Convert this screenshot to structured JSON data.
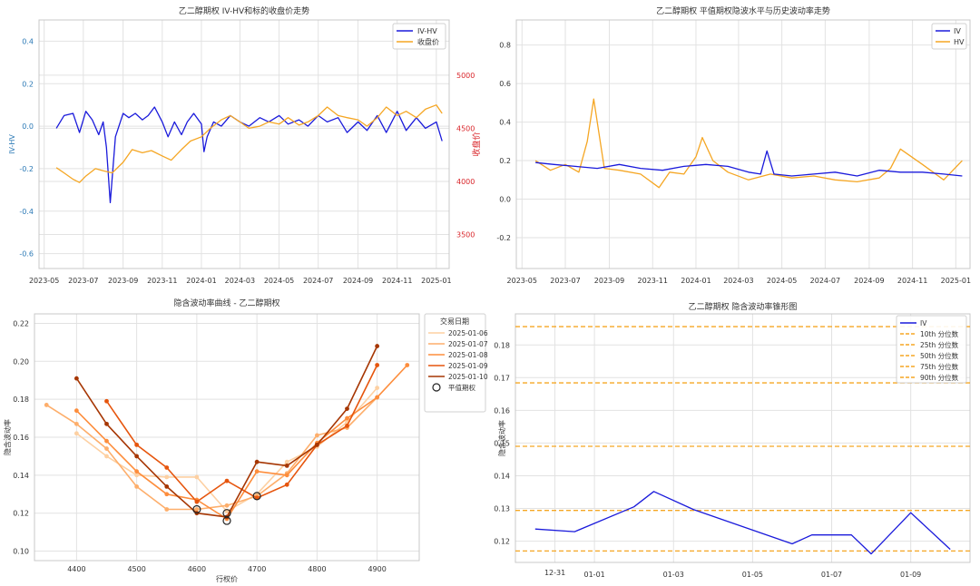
{
  "chart_data": [
    {
      "type": "line",
      "title": "乙二醇期权 IV-HV和标的收盘价走势",
      "ylabel": "IV-HV",
      "y2label": "收盘价",
      "ylim": [
        -0.67,
        0.5
      ],
      "y2lim": [
        3180,
        5520
      ],
      "yticks": [
        -0.6,
        -0.4,
        -0.2,
        0.0,
        0.2,
        0.4
      ],
      "y2ticks": [
        3500,
        4000,
        4500,
        5000
      ],
      "xticks": [
        "2023-05",
        "2023-07",
        "2023-09",
        "2023-11",
        "2024-01",
        "2024-03",
        "2024-05",
        "2024-07",
        "2024-09",
        "2024-11",
        "2025-01"
      ],
      "legend": "top-right",
      "grid": true,
      "series": [
        {
          "name": "IV-HV",
          "axis": "left",
          "color": "#1a1adb",
          "x": [
            "2023-05-20",
            "2023-06-01",
            "2023-06-15",
            "2023-06-25",
            "2023-07-05",
            "2023-07-15",
            "2023-07-25",
            "2023-08-01",
            "2023-08-06",
            "2023-08-12",
            "2023-08-20",
            "2023-09-01",
            "2023-09-10",
            "2023-09-20",
            "2023-10-01",
            "2023-10-10",
            "2023-10-20",
            "2023-11-01",
            "2023-11-10",
            "2023-11-20",
            "2023-12-01",
            "2023-12-10",
            "2023-12-20",
            "2024-01-01",
            "2024-01-05",
            "2024-01-10",
            "2024-01-20",
            "2024-02-01",
            "2024-02-15",
            "2024-03-01",
            "2024-03-15",
            "2024-04-01",
            "2024-04-15",
            "2024-05-01",
            "2024-05-15",
            "2024-06-01",
            "2024-06-15",
            "2024-07-01",
            "2024-07-15",
            "2024-08-01",
            "2024-08-15",
            "2024-09-01",
            "2024-09-15",
            "2024-10-01",
            "2024-10-15",
            "2024-11-01",
            "2024-11-15",
            "2024-12-01",
            "2024-12-15",
            "2025-01-01",
            "2025-01-10"
          ],
          "values": [
            -0.01,
            0.05,
            0.06,
            -0.03,
            0.07,
            0.03,
            -0.04,
            0.02,
            -0.1,
            -0.36,
            -0.05,
            0.06,
            0.04,
            0.06,
            0.03,
            0.05,
            0.09,
            0.02,
            -0.05,
            0.02,
            -0.04,
            0.02,
            0.06,
            0.01,
            -0.12,
            -0.05,
            0.02,
            0.0,
            0.05,
            0.02,
            0.0,
            0.04,
            0.02,
            0.05,
            0.01,
            0.03,
            0.0,
            0.05,
            0.02,
            0.04,
            -0.03,
            0.02,
            -0.02,
            0.05,
            -0.03,
            0.07,
            -0.02,
            0.04,
            -0.01,
            0.02,
            -0.07
          ]
        },
        {
          "name": "收盘价",
          "axis": "right",
          "color": "#f5a623",
          "x": [
            "2023-05-20",
            "2023-06-01",
            "2023-06-15",
            "2023-06-25",
            "2023-07-05",
            "2023-07-20",
            "2023-08-01",
            "2023-08-15",
            "2023-09-01",
            "2023-09-15",
            "2023-10-01",
            "2023-10-15",
            "2023-11-01",
            "2023-11-15",
            "2023-12-01",
            "2023-12-15",
            "2024-01-01",
            "2024-01-15",
            "2024-02-01",
            "2024-02-15",
            "2024-03-01",
            "2024-03-15",
            "2024-04-01",
            "2024-04-15",
            "2024-05-01",
            "2024-05-15",
            "2024-06-01",
            "2024-06-15",
            "2024-07-01",
            "2024-07-15",
            "2024-08-01",
            "2024-08-15",
            "2024-09-01",
            "2024-09-15",
            "2024-10-01",
            "2024-10-15",
            "2024-11-01",
            "2024-11-15",
            "2024-12-01",
            "2024-12-15",
            "2025-01-01",
            "2025-01-10"
          ],
          "values": [
            4130,
            4080,
            4020,
            3990,
            4050,
            4120,
            4100,
            4080,
            4180,
            4300,
            4270,
            4290,
            4240,
            4200,
            4300,
            4380,
            4420,
            4500,
            4580,
            4620,
            4560,
            4500,
            4520,
            4560,
            4540,
            4600,
            4530,
            4560,
            4620,
            4700,
            4620,
            4600,
            4580,
            4520,
            4600,
            4700,
            4620,
            4660,
            4600,
            4680,
            4720,
            4640
          ]
        }
      ]
    },
    {
      "type": "line",
      "title": "乙二醇期权 平值期权隐波水平与历史波动率走势",
      "ylim": [
        -0.36,
        0.93
      ],
      "yticks": [
        -0.2,
        0.0,
        0.2,
        0.4,
        0.6,
        0.8
      ],
      "xticks": [
        "2023-05",
        "2023-07",
        "2023-09",
        "2023-11",
        "2024-01",
        "2024-03",
        "2024-05",
        "2024-07",
        "2024-09",
        "2024-11",
        "2025-01"
      ],
      "legend": "top-right",
      "grid": true,
      "series": [
        {
          "name": "IV",
          "color": "#1a1adb",
          "x": [
            "2023-05-20",
            "2023-06-15",
            "2023-07-15",
            "2023-08-15",
            "2023-09-15",
            "2023-10-15",
            "2023-11-15",
            "2023-12-15",
            "2024-01-15",
            "2024-02-15",
            "2024-03-15",
            "2024-04-01",
            "2024-04-10",
            "2024-04-20",
            "2024-05-15",
            "2024-06-15",
            "2024-07-15",
            "2024-08-15",
            "2024-09-15",
            "2024-10-15",
            "2024-11-15",
            "2024-12-15",
            "2025-01-10"
          ],
          "values": [
            0.19,
            0.18,
            0.17,
            0.16,
            0.18,
            0.16,
            0.15,
            0.17,
            0.18,
            0.17,
            0.14,
            0.13,
            0.25,
            0.13,
            0.12,
            0.13,
            0.14,
            0.12,
            0.15,
            0.14,
            0.14,
            0.13,
            0.12
          ]
        },
        {
          "name": "HV",
          "color": "#f5a623",
          "x": [
            "2023-05-20",
            "2023-06-10",
            "2023-07-01",
            "2023-07-20",
            "2023-08-01",
            "2023-08-10",
            "2023-08-25",
            "2023-09-15",
            "2023-10-15",
            "2023-11-10",
            "2023-11-25",
            "2023-12-15",
            "2024-01-01",
            "2024-01-10",
            "2024-01-25",
            "2024-02-15",
            "2024-03-15",
            "2024-04-15",
            "2024-05-15",
            "2024-06-15",
            "2024-07-15",
            "2024-08-15",
            "2024-09-15",
            "2024-10-01",
            "2024-10-15",
            "2024-11-15",
            "2024-12-15",
            "2025-01-10"
          ],
          "values": [
            0.2,
            0.15,
            0.18,
            0.14,
            0.3,
            0.52,
            0.16,
            0.15,
            0.13,
            0.06,
            0.14,
            0.13,
            0.22,
            0.32,
            0.2,
            0.14,
            0.1,
            0.13,
            0.11,
            0.12,
            0.1,
            0.09,
            0.11,
            0.16,
            0.26,
            0.18,
            0.1,
            0.2
          ]
        }
      ]
    },
    {
      "type": "line",
      "title": "隐含波动率曲线 - 乙二醇期权",
      "xlabel": "行权价",
      "ylabel": "隐含波动率",
      "xlim": [
        4330,
        4970
      ],
      "ylim": [
        0.095,
        0.225
      ],
      "xticks": [
        4400,
        4500,
        4600,
        4700,
        4800,
        4900
      ],
      "yticks": [
        0.1,
        0.12,
        0.14,
        0.16,
        0.18,
        0.2,
        0.22
      ],
      "legend_title": "交易日期",
      "legend": "right",
      "atm_label": "平值期权",
      "grid": true,
      "series": [
        {
          "name": "2025-01-06",
          "color": "#fdd0a2",
          "x": [
            4400,
            4450,
            4500,
            4550,
            4600,
            4650,
            4700,
            4750,
            4800,
            4850,
            4900
          ],
          "values": [
            0.162,
            0.15,
            0.14,
            0.139,
            0.139,
            0.121,
            0.13,
            0.147,
            0.155,
            0.168,
            0.186
          ]
        },
        {
          "name": "2025-01-07",
          "color": "#fdae6b",
          "x": [
            4350,
            4400,
            4450,
            4500,
            4550,
            4600,
            4650,
            4700,
            4750,
            4800,
            4850,
            4900
          ],
          "values": [
            0.177,
            0.167,
            0.154,
            0.134,
            0.122,
            0.122,
            0.124,
            0.129,
            0.141,
            0.161,
            0.165,
            0.181
          ]
        },
        {
          "name": "2025-01-08",
          "color": "#fd8d3c",
          "x": [
            4400,
            4450,
            4500,
            4550,
            4600,
            4650,
            4700,
            4750,
            4800,
            4850,
            4900,
            4950
          ],
          "values": [
            0.174,
            0.158,
            0.142,
            0.13,
            0.127,
            0.117,
            0.142,
            0.14,
            0.157,
            0.17,
            0.181,
            0.198
          ]
        },
        {
          "name": "2025-01-09",
          "color": "#e6550d",
          "x": [
            4450,
            4500,
            4550,
            4600,
            4650,
            4700,
            4750,
            4800,
            4850,
            4900
          ],
          "values": [
            0.179,
            0.156,
            0.144,
            0.126,
            0.137,
            0.128,
            0.135,
            0.156,
            0.166,
            0.198
          ]
        },
        {
          "name": "2025-01-10",
          "color": "#a63603",
          "x": [
            4400,
            4450,
            4500,
            4550,
            4600,
            4650,
            4700,
            4750,
            4800,
            4850,
            4900
          ],
          "values": [
            0.191,
            0.167,
            0.15,
            0.134,
            0.12,
            0.118,
            0.147,
            0.145,
            0.156,
            0.175,
            0.208
          ]
        }
      ],
      "atm_points": [
        [
          4600,
          0.122
        ],
        [
          4650,
          0.12
        ],
        [
          4650,
          0.116
        ],
        [
          4700,
          0.129
        ]
      ]
    },
    {
      "type": "line",
      "title": "乙二醇期权 隐含波动率锥形图",
      "ylabel": "隐含波动率",
      "ylim": [
        0.1135,
        0.1895
      ],
      "yticks": [
        0.12,
        0.13,
        0.14,
        0.15,
        0.16,
        0.17,
        0.18
      ],
      "xticks": [
        "12-31",
        "01-01",
        "01-03",
        "01-05",
        "01-07",
        "01-09"
      ],
      "legend": "top-right",
      "grid": true,
      "series": [
        {
          "name": "IV",
          "color": "#1a1adb",
          "x": [
            "12-30 12:00",
            "12-31 12:00",
            "01-02 00:00",
            "01-02 12:00",
            "01-03 12:00",
            "01-06 00:00",
            "01-06 12:00",
            "01-07 12:00",
            "01-08 00:00",
            "01-09 00:00",
            "01-10 00:00"
          ],
          "values": [
            0.1237,
            0.1229,
            0.1305,
            0.1352,
            0.1297,
            0.1192,
            0.1219,
            0.1219,
            0.1161,
            0.1287,
            0.1175
          ]
        }
      ],
      "percentiles": [
        {
          "name": "10th 分位数",
          "value": 0.117
        },
        {
          "name": "25th 分位数",
          "value": 0.1294
        },
        {
          "name": "50th 分位数",
          "value": 0.149
        },
        {
          "name": "75th 分位数",
          "value": 0.1684
        },
        {
          "name": "90th 分位数",
          "value": 0.1856
        }
      ],
      "percentile_color": "#f5a623"
    }
  ]
}
